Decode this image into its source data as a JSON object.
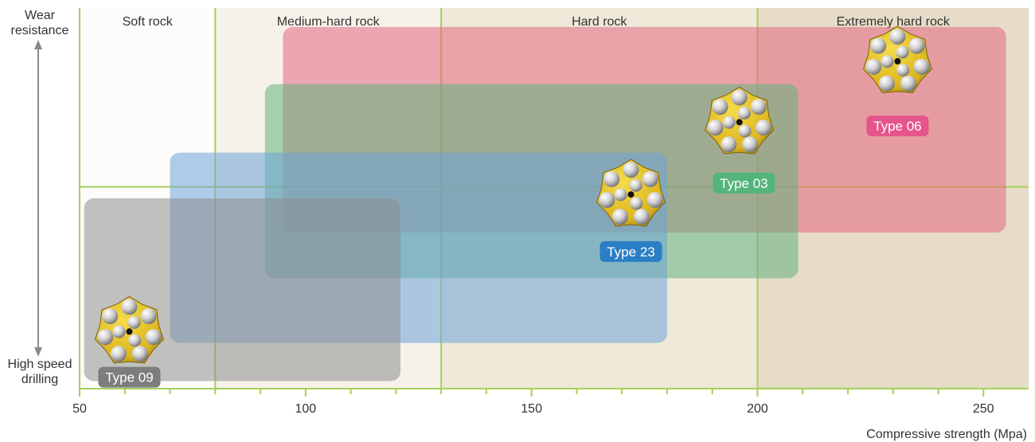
{
  "chart_data": {
    "type": "range",
    "x_axis": {
      "label": "Compressive strength (Mpa)",
      "min": 50,
      "max": 260,
      "ticks": [
        50,
        100,
        150,
        200,
        250
      ],
      "minor_ticks": [
        60,
        70,
        80,
        90,
        110,
        120,
        130,
        140,
        160,
        170,
        180,
        190,
        210,
        220,
        230,
        240
      ]
    },
    "y_axis": {
      "top_label": [
        "Wear",
        "resistance"
      ],
      "bottom_label": [
        "High speed",
        "drilling"
      ],
      "min": 0,
      "max": 100
    },
    "y_divider": 53,
    "rock_zones": [
      {
        "label": "Soft rock",
        "from": 50,
        "to": 80,
        "color": "#fdfcfa"
      },
      {
        "label": "Medium-hard rock",
        "from": 80,
        "to": 130,
        "color": "#f6f2e9"
      },
      {
        "label": "Hard rock",
        "from": 130,
        "to": 200,
        "color": "#efe8d9"
      },
      {
        "label": "Extremely hard rock",
        "from": 200,
        "to": 260,
        "color": "#e6dcc8"
      }
    ],
    "series": [
      {
        "name": "Type 06",
        "x_range": [
          95,
          255
        ],
        "y_range": [
          41,
          95
        ],
        "color": "#e2677f",
        "label_color": "#e5558a",
        "label_at": [
          231,
          69
        ],
        "bit_at": [
          231,
          86
        ]
      },
      {
        "name": "Type 03",
        "x_range": [
          91,
          209
        ],
        "y_range": [
          29,
          80
        ],
        "color": "#63b27e",
        "label_color": "#54b57a",
        "label_at": [
          197,
          54
        ],
        "bit_at": [
          196,
          70
        ]
      },
      {
        "name": "Type 23",
        "x_range": [
          70,
          180
        ],
        "y_range": [
          12,
          62
        ],
        "color": "#6ea4d8",
        "label_color": "#2a7fc4",
        "label_at": [
          172,
          36
        ],
        "bit_at": [
          172,
          51
        ]
      },
      {
        "name": "Type 09",
        "x_range": [
          51,
          121
        ],
        "y_range": [
          2,
          50
        ],
        "color": "#8e8e8e",
        "label_color": "#7d7d7d",
        "label_at": [
          61,
          3
        ],
        "bit_at": [
          61,
          15
        ]
      }
    ]
  }
}
